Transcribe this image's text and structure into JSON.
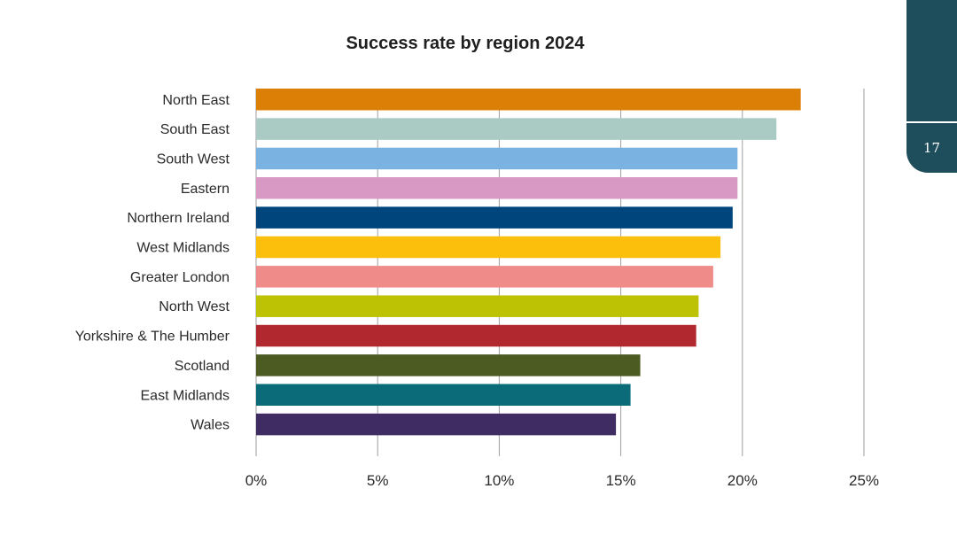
{
  "page": {
    "number": "17"
  },
  "colors": {
    "tab": "#1e4d5c",
    "grid": "#9e9e9e"
  },
  "chart_data": {
    "type": "bar",
    "orientation": "horizontal",
    "title": "Success rate by region 2024",
    "categories": [
      "North East",
      "South East",
      "South West",
      "Eastern",
      "Northern Ireland",
      "West Midlands",
      "Greater London",
      "North West",
      "Yorkshire & The Humber",
      "Scotland",
      "East Midlands",
      "Wales"
    ],
    "values": [
      22.4,
      21.4,
      19.8,
      19.8,
      19.6,
      19.1,
      18.8,
      18.2,
      18.1,
      15.8,
      15.4,
      14.8
    ],
    "colors": [
      "#dc7f07",
      "#a9cbc3",
      "#7ab3e1",
      "#d899c4",
      "#00457c",
      "#fcbf0b",
      "#ef8b88",
      "#bdc204",
      "#b1282f",
      "#4c5b22",
      "#0b6b78",
      "#3e2c63"
    ],
    "xlim": [
      0,
      25
    ],
    "xticks": [
      "0%",
      "5%",
      "10%",
      "15%",
      "20%",
      "25%"
    ],
    "grid": true,
    "legend": "none"
  }
}
